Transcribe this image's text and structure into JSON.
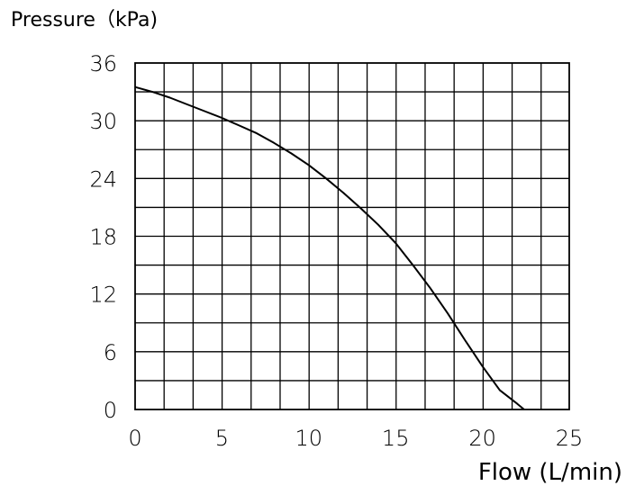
{
  "chart_data": {
    "type": "line",
    "title": "",
    "ylabel": "Pressure（kPa)",
    "xlabel": "Flow (L/min)",
    "xlim": [
      0,
      25
    ],
    "ylim": [
      0,
      36
    ],
    "x_ticks": [
      0,
      5,
      10,
      15,
      20,
      25
    ],
    "y_ticks": [
      0,
      6,
      12,
      18,
      24,
      30,
      36
    ],
    "x_tick_labels": [
      "0",
      "5",
      "10",
      "15",
      "20",
      "25"
    ],
    "y_tick_labels": [
      "0",
      "6",
      "12",
      "18",
      "24",
      "30",
      "36"
    ],
    "grid": true,
    "x_grid_step": 1.67,
    "y_grid_step": 3,
    "legend": "none",
    "series": [
      {
        "x": [
          0,
          1,
          2,
          3,
          4,
          5,
          6,
          7,
          8,
          9,
          10,
          11,
          12,
          13,
          14,
          15,
          16,
          17,
          18,
          19,
          20,
          21,
          22,
          22.4
        ],
        "y": [
          33.5,
          33.0,
          32.4,
          31.7,
          31.0,
          30.3,
          29.5,
          28.7,
          27.7,
          26.6,
          25.4,
          24.0,
          22.5,
          20.9,
          19.2,
          17.3,
          15.0,
          12.6,
          10.0,
          7.2,
          4.5,
          2.0,
          0.6,
          0
        ]
      }
    ],
    "colors": {
      "line": "#000000",
      "grid": "#000000",
      "background": "#ffffff"
    }
  }
}
